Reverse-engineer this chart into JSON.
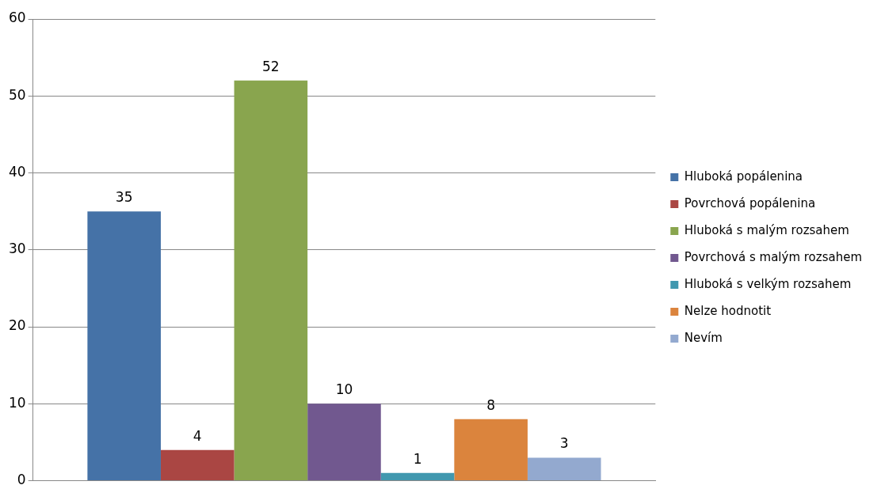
{
  "chart_data": {
    "type": "bar",
    "categories": [
      null
    ],
    "series": [
      {
        "name": "Hluboká popálenina",
        "color": "#4572a7",
        "values": [
          35
        ]
      },
      {
        "name": "Povrchová popálenina",
        "color": "#aa4643",
        "values": [
          4
        ]
      },
      {
        "name": "Hluboká s malým rozsahem",
        "color": "#89a54e",
        "values": [
          52
        ]
      },
      {
        "name": "Povrchová s malým rozsahem",
        "color": "#71588f",
        "values": [
          10
        ]
      },
      {
        "name": "Hluboká s velkým rozsahem",
        "color": "#4198af",
        "values": [
          1
        ]
      },
      {
        "name": "Nelze hodnotit",
        "color": "#db843d",
        "values": [
          8
        ]
      },
      {
        "name": "Nevím",
        "color": "#93a9cf",
        "values": [
          3
        ]
      }
    ],
    "ylim": [
      0,
      60
    ],
    "yticks": [
      0,
      10,
      20,
      30,
      40,
      50,
      60
    ],
    "grid": "y",
    "legend": "right",
    "data_labels": true
  }
}
